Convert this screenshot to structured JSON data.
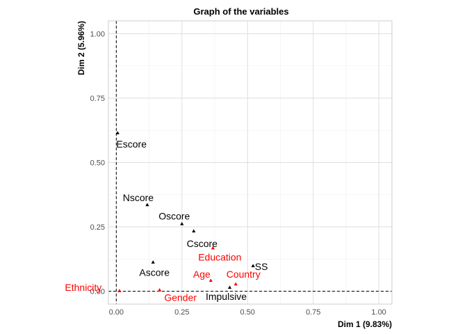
{
  "chart_data": {
    "type": "scatter",
    "title": "Graph of the variables",
    "xlabel": "Dim 1 (9.83%)",
    "ylabel": "Dim 2 (5.96%)",
    "xlim": [
      -0.03,
      1.05
    ],
    "ylim": [
      -0.05,
      1.05
    ],
    "xticks": [
      0.0,
      0.25,
      0.5,
      0.75,
      1.0
    ],
    "yticks": [
      0.0,
      0.25,
      0.5,
      0.75,
      1.0
    ],
    "xtick_labels": [
      "0.00",
      "0.25",
      "0.50",
      "0.75",
      "1.00"
    ],
    "ytick_labels": [
      "0.00",
      "0.25",
      "0.50",
      "0.75",
      "1.00"
    ],
    "grid": true,
    "reference_lines": {
      "x": 0,
      "y": 0,
      "style": "dashed"
    },
    "colors": {
      "active": "#000000",
      "supplementary": "#ff0000",
      "grid": "#dedede",
      "panel_border": "#cccccc"
    },
    "points": [
      {
        "label": "Escore",
        "x": 0.005,
        "y": 0.615,
        "group": "active"
      },
      {
        "label": "Nscore",
        "x": 0.118,
        "y": 0.336,
        "group": "active"
      },
      {
        "label": "Oscore",
        "x": 0.25,
        "y": 0.262,
        "group": "active"
      },
      {
        "label": "Cscore",
        "x": 0.295,
        "y": 0.234,
        "group": "active"
      },
      {
        "label": "Ascore",
        "x": 0.14,
        "y": 0.113,
        "group": "active"
      },
      {
        "label": "SS",
        "x": 0.521,
        "y": 0.099,
        "group": "active"
      },
      {
        "label": "Impulsive",
        "x": 0.432,
        "y": 0.015,
        "group": "active"
      },
      {
        "label": "Education",
        "x": 0.368,
        "y": 0.168,
        "group": "supplementary"
      },
      {
        "label": "Age",
        "x": 0.36,
        "y": 0.042,
        "group": "supplementary"
      },
      {
        "label": "Country",
        "x": 0.455,
        "y": 0.028,
        "group": "supplementary"
      },
      {
        "label": "Ethnicity",
        "x": 0.012,
        "y": 0.002,
        "group": "supplementary"
      },
      {
        "label": "Gender",
        "x": 0.165,
        "y": 0.005,
        "group": "supplementary"
      }
    ]
  }
}
